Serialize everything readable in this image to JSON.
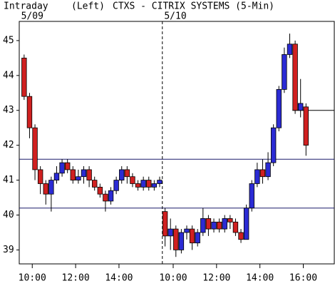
{
  "chart_data": {
    "type": "candlestick",
    "title": "CTXS - CITRIX SYSTEMS (5-Min)",
    "subtitle": "Intraday",
    "axis_note": "(Left)",
    "day_labels": [
      {
        "value": 10,
        "label": "5/09"
      },
      {
        "value": 16.6,
        "label": "5/10"
      }
    ],
    "x": [
      9.5,
      9.75,
      10,
      10.25,
      10.5,
      10.75,
      11,
      11.25,
      11.5,
      11.75,
      12,
      12.25,
      12.5,
      12.75,
      13,
      13.25,
      13.5,
      13.75,
      14,
      14.25,
      14.5,
      14.75,
      15,
      15.25,
      15.5,
      15.75,
      16,
      16.25,
      16.5,
      16.75,
      17,
      17.25,
      17.5,
      17.75,
      18,
      18.25,
      18.5,
      18.75,
      19,
      19.25,
      19.5,
      19.75,
      20,
      20.25,
      20.5,
      20.75,
      21,
      21.25,
      21.5,
      21.75,
      22,
      22.25,
      22.5
    ],
    "open": [
      44.5,
      43.4,
      42.5,
      41.3,
      40.9,
      40.6,
      41.0,
      41.2,
      41.5,
      41.3,
      41.0,
      41.1,
      41.3,
      41.0,
      40.8,
      40.6,
      40.4,
      40.7,
      41.0,
      41.3,
      41.1,
      40.9,
      40.8,
      41.0,
      40.8,
      40.9,
      40.1,
      39.4,
      39.6,
      39.0,
      39.5,
      39.6,
      39.2,
      39.5,
      39.9,
      39.6,
      39.8,
      39.6,
      39.9,
      39.8,
      39.5,
      39.3,
      40.2,
      40.9,
      41.3,
      41.1,
      41.5,
      42.5,
      43.6,
      44.6,
      44.9,
      43.0,
      43.1
    ],
    "high": [
      44.6,
      43.5,
      42.6,
      41.4,
      41.0,
      41.1,
      41.4,
      41.6,
      41.6,
      41.4,
      41.3,
      41.4,
      41.4,
      41.1,
      40.9,
      40.7,
      40.8,
      41.1,
      41.4,
      41.4,
      41.2,
      41.0,
      41.1,
      41.1,
      41.0,
      41.1,
      40.2,
      39.9,
      39.7,
      39.6,
      39.7,
      39.7,
      39.6,
      40.2,
      40.0,
      39.9,
      39.9,
      40.0,
      40.0,
      39.9,
      39.6,
      40.3,
      41.0,
      41.5,
      41.6,
      41.8,
      42.6,
      43.7,
      44.8,
      45.2,
      45.0,
      43.9,
      43.2
    ],
    "low": [
      43.3,
      42.2,
      41.0,
      40.6,
      40.3,
      40.1,
      40.9,
      41.1,
      41.2,
      40.9,
      40.9,
      40.9,
      40.8,
      40.7,
      40.5,
      40.1,
      40.3,
      40.6,
      40.9,
      40.9,
      40.8,
      40.7,
      40.7,
      40.7,
      40.7,
      40.8,
      39.1,
      39.0,
      38.8,
      38.9,
      39.3,
      39.0,
      39.1,
      39.4,
      39.4,
      39.5,
      39.5,
      39.5,
      39.6,
      39.4,
      39.2,
      39.3,
      40.1,
      40.8,
      40.9,
      41.0,
      41.4,
      42.4,
      43.5,
      44.5,
      42.9,
      42.8,
      41.7
    ],
    "close": [
      43.4,
      42.5,
      41.3,
      40.9,
      40.6,
      41.0,
      41.2,
      41.5,
      41.3,
      41.0,
      41.1,
      41.3,
      41.0,
      40.8,
      40.6,
      40.4,
      40.7,
      41.0,
      41.3,
      41.1,
      40.9,
      40.8,
      41.0,
      40.8,
      40.9,
      41.0,
      39.4,
      39.6,
      39.0,
      39.5,
      39.6,
      39.2,
      39.5,
      39.9,
      39.6,
      39.8,
      39.6,
      39.9,
      39.8,
      39.5,
      39.3,
      40.2,
      40.9,
      41.3,
      41.1,
      41.5,
      42.5,
      43.6,
      44.6,
      44.9,
      43.0,
      43.2,
      42.0
    ],
    "up_color": "#2b2bd4",
    "down_color": "#d02020",
    "levels": [
      41.6,
      40.2
    ],
    "close_line": {
      "value": 43.0,
      "from": 22.0
    },
    "day_divider": 16.0,
    "xlim": [
      9.4,
      23.93
    ],
    "ylim": [
      38.6,
      45.55
    ],
    "yticks": [
      39,
      40,
      41,
      42,
      43,
      44,
      45
    ],
    "xticks": [
      {
        "value": 10,
        "label": "10:00"
      },
      {
        "value": 12,
        "label": "12:00"
      },
      {
        "value": 14,
        "label": "14:00"
      },
      {
        "value": 16.5,
        "label": "10:00"
      },
      {
        "value": 18.5,
        "label": "12:00"
      },
      {
        "value": 20.5,
        "label": "14:00"
      },
      {
        "value": 22.5,
        "label": "16:00"
      }
    ]
  }
}
